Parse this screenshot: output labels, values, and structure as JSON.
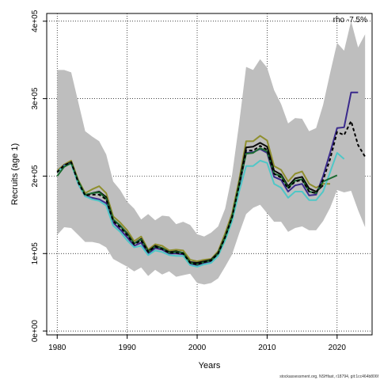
{
  "chart_data": {
    "type": "line",
    "title": "",
    "xlabel": "Years",
    "ylabel": "Recruits (age 1)",
    "annotation": "rho -7.5%",
    "footer": "stockassessment.org, NSHfast, r18794, git:1cc464b806f",
    "xlim": [
      1978.5,
      2025
    ],
    "ylim": [
      -5000,
      410000
    ],
    "grid": true,
    "x_ticks": [
      1980,
      1990,
      2000,
      2010,
      2020
    ],
    "x_tick_labels": [
      "1980",
      "1990",
      "2000",
      "2010",
      "2020"
    ],
    "y_ticks": [
      0,
      100000,
      200000,
      300000,
      400000
    ],
    "y_tick_labels": [
      "0e+00",
      "1e+05",
      "2e+05",
      "3e+05",
      "4e+05"
    ],
    "band": {
      "color": "#bebebe",
      "x": [
        1980,
        1981,
        1982,
        1983,
        1984,
        1985,
        1986,
        1987,
        1988,
        1989,
        1990,
        1991,
        1992,
        1993,
        1994,
        1995,
        1996,
        1997,
        1998,
        1999,
        2000,
        2001,
        2002,
        2003,
        2004,
        2005,
        2006,
        2007,
        2008,
        2009,
        2010,
        2011,
        2012,
        2013,
        2014,
        2015,
        2016,
        2017,
        2018,
        2019,
        2020,
        2021,
        2022,
        2023,
        2024
      ],
      "upper": [
        337000,
        337000,
        334000,
        296000,
        258000,
        251000,
        245000,
        228000,
        193000,
        182000,
        167000,
        158000,
        144000,
        151000,
        143000,
        149000,
        148000,
        138000,
        141000,
        137000,
        125000,
        122000,
        127000,
        135000,
        158000,
        202000,
        268000,
        341000,
        337000,
        351000,
        340000,
        311000,
        293000,
        268000,
        275000,
        274000,
        258000,
        262000,
        292000,
        333000,
        372000,
        362000,
        400000,
        366000,
        383000
      ],
      "lower": [
        124000,
        134000,
        133000,
        124000,
        115000,
        115000,
        113000,
        108000,
        93000,
        88000,
        83000,
        77000,
        82000,
        71000,
        79000,
        73000,
        77000,
        70000,
        72000,
        74000,
        62000,
        60000,
        62000,
        68000,
        83000,
        99000,
        126000,
        151000,
        159000,
        163000,
        152000,
        141000,
        141000,
        128000,
        133000,
        135000,
        130000,
        130000,
        142000,
        159000,
        182000,
        179000,
        181000,
        156000,
        134000
      ]
    },
    "series": [
      {
        "color": "#8f8f2e",
        "style": "solid",
        "x": [
          1980,
          1981,
          1982,
          1983,
          1984,
          1985,
          1986,
          1987,
          1988,
          1989,
          1990,
          1991,
          1992,
          1993,
          1994,
          1995,
          1996,
          1997,
          1998,
          1999,
          2000,
          2001,
          2002,
          2003,
          2004,
          2005,
          2006,
          2007,
          2008,
          2009,
          2010,
          2011,
          2012,
          2013,
          2014,
          2015,
          2016,
          2017,
          2018,
          2019
        ],
        "values": [
          207000,
          215000,
          220000,
          195000,
          178000,
          183000,
          187000,
          178000,
          148000,
          140000,
          130000,
          116000,
          122000,
          105000,
          112000,
          110000,
          104000,
          105000,
          104000,
          92000,
          90000,
          92000,
          93000,
          103000,
          126000,
          152000,
          195000,
          245000,
          245000,
          252000,
          246000,
          213000,
          208000,
          193000,
          203000,
          206000,
          190000,
          185000,
          190000,
          190000
        ]
      },
      {
        "color": "#0a0a0a",
        "style": "solid",
        "x": [
          1980,
          1981,
          1982,
          1983,
          1984,
          1985,
          1986,
          1987,
          1988,
          1989,
          1990,
          1991,
          1992,
          1993,
          1994,
          1995,
          1996,
          1997,
          1998,
          1999,
          2000,
          2001,
          2002,
          2003,
          2004,
          2005,
          2006,
          2007,
          2008,
          2009,
          2010,
          2011,
          2012,
          2013,
          2014,
          2015,
          2016,
          2017,
          2018
        ],
        "values": [
          205000,
          214000,
          218000,
          193000,
          175000,
          178000,
          180000,
          173000,
          144000,
          136000,
          126000,
          113000,
          119000,
          103000,
          110000,
          107000,
          102000,
          103000,
          101000,
          89000,
          88000,
          90000,
          92000,
          101000,
          122000,
          148000,
          190000,
          237000,
          238000,
          243000,
          238000,
          207000,
          202000,
          187000,
          197000,
          199000,
          184000,
          180000,
          188000
        ]
      },
      {
        "color": "#3a2a8c",
        "style": "solid",
        "x": [
          1980,
          1981,
          1982,
          1983,
          1984,
          1985,
          1986,
          1987,
          1988,
          1989,
          1990,
          1991,
          1992,
          1993,
          1994,
          1995,
          1996,
          1997,
          1998,
          1999,
          2000,
          2001,
          2002,
          2003,
          2004,
          2005,
          2006,
          2007,
          2008,
          2009,
          2010,
          2011,
          2012,
          2013,
          2014,
          2015,
          2016,
          2017,
          2018,
          2019,
          2020,
          2021,
          2022,
          2023
        ],
        "values": [
          205000,
          214000,
          217000,
          190000,
          174000,
          172000,
          170000,
          165000,
          140000,
          131000,
          121000,
          110000,
          114000,
          100000,
          107000,
          105000,
          100000,
          100000,
          99000,
          87000,
          85000,
          88000,
          90000,
          99000,
          120000,
          146000,
          186000,
          230000,
          231000,
          235000,
          230000,
          199000,
          195000,
          180000,
          188000,
          190000,
          175000,
          176000,
          200000,
          230000,
          262000,
          263000,
          308000,
          308000
        ]
      },
      {
        "color": "#4fc7c7",
        "style": "solid",
        "x": [
          1980,
          1981,
          1982,
          1983,
          1984,
          1985,
          1986,
          1987,
          1988,
          1989,
          1990,
          1991,
          1992,
          1993,
          1994,
          1995,
          1996,
          1997,
          1998,
          1999,
          2000,
          2001,
          2002,
          2003,
          2004,
          2005,
          2006,
          2007,
          2008,
          2009,
          2010,
          2011,
          2012,
          2013,
          2014,
          2015,
          2016,
          2017,
          2018,
          2019,
          2020,
          2021
        ],
        "values": [
          205000,
          213000,
          216000,
          190000,
          174000,
          170000,
          168000,
          162000,
          136000,
          128000,
          117000,
          108000,
          110000,
          98000,
          104000,
          102000,
          98000,
          97000,
          97000,
          85000,
          83000,
          86000,
          88000,
          97000,
          117000,
          142000,
          180000,
          213000,
          213000,
          220000,
          217000,
          190000,
          185000,
          172000,
          180000,
          180000,
          169000,
          169000,
          180000,
          205000,
          230000,
          222000
        ]
      },
      {
        "color": "#1a6b30",
        "style": "solid",
        "x": [
          1980,
          1981,
          1982,
          1983,
          1984,
          1985,
          1986,
          1987,
          1988,
          1989,
          1990,
          1991,
          1992,
          1993,
          1994,
          1995,
          1996,
          1997,
          1998,
          1999,
          2000,
          2001,
          2002,
          2003,
          2004,
          2005,
          2006,
          2007,
          2008,
          2009,
          2010,
          2011,
          2012,
          2013,
          2014,
          2015,
          2016,
          2017,
          2018,
          2019,
          2020
        ],
        "values": [
          200000,
          212000,
          217000,
          194000,
          176000,
          178000,
          179000,
          171000,
          144000,
          136000,
          125000,
          113000,
          118000,
          102000,
          109000,
          107000,
          101000,
          102000,
          101000,
          88000,
          86000,
          89000,
          91000,
          100000,
          121000,
          147000,
          189000,
          229000,
          230000,
          236000,
          232000,
          203000,
          200000,
          185000,
          194000,
          196000,
          180000,
          178000,
          193000,
          197000,
          201000
        ]
      },
      {
        "color": "#000000",
        "style": "dashed",
        "x": [
          1980,
          1981,
          1982,
          1983,
          1984,
          1985,
          1986,
          1987,
          1988,
          1989,
          1990,
          1991,
          1992,
          1993,
          1994,
          1995,
          1996,
          1997,
          1998,
          1999,
          2000,
          2001,
          2002,
          2003,
          2004,
          2005,
          2006,
          2007,
          2008,
          2009,
          2010,
          2011,
          2012,
          2013,
          2014,
          2015,
          2016,
          2017,
          2018,
          2019,
          2020,
          2021,
          2022,
          2023,
          2024
        ],
        "values": [
          205000,
          214000,
          218000,
          192000,
          175000,
          176000,
          176000,
          170000,
          142000,
          134000,
          124000,
          112000,
          117000,
          102000,
          109000,
          106000,
          101000,
          101000,
          100000,
          88000,
          86000,
          89000,
          91000,
          100000,
          121000,
          147000,
          188000,
          233000,
          233000,
          239000,
          234000,
          203000,
          198000,
          184000,
          193000,
          195000,
          180000,
          178000,
          195000,
          222000,
          257000,
          253000,
          271000,
          240000,
          225000
        ]
      }
    ]
  }
}
